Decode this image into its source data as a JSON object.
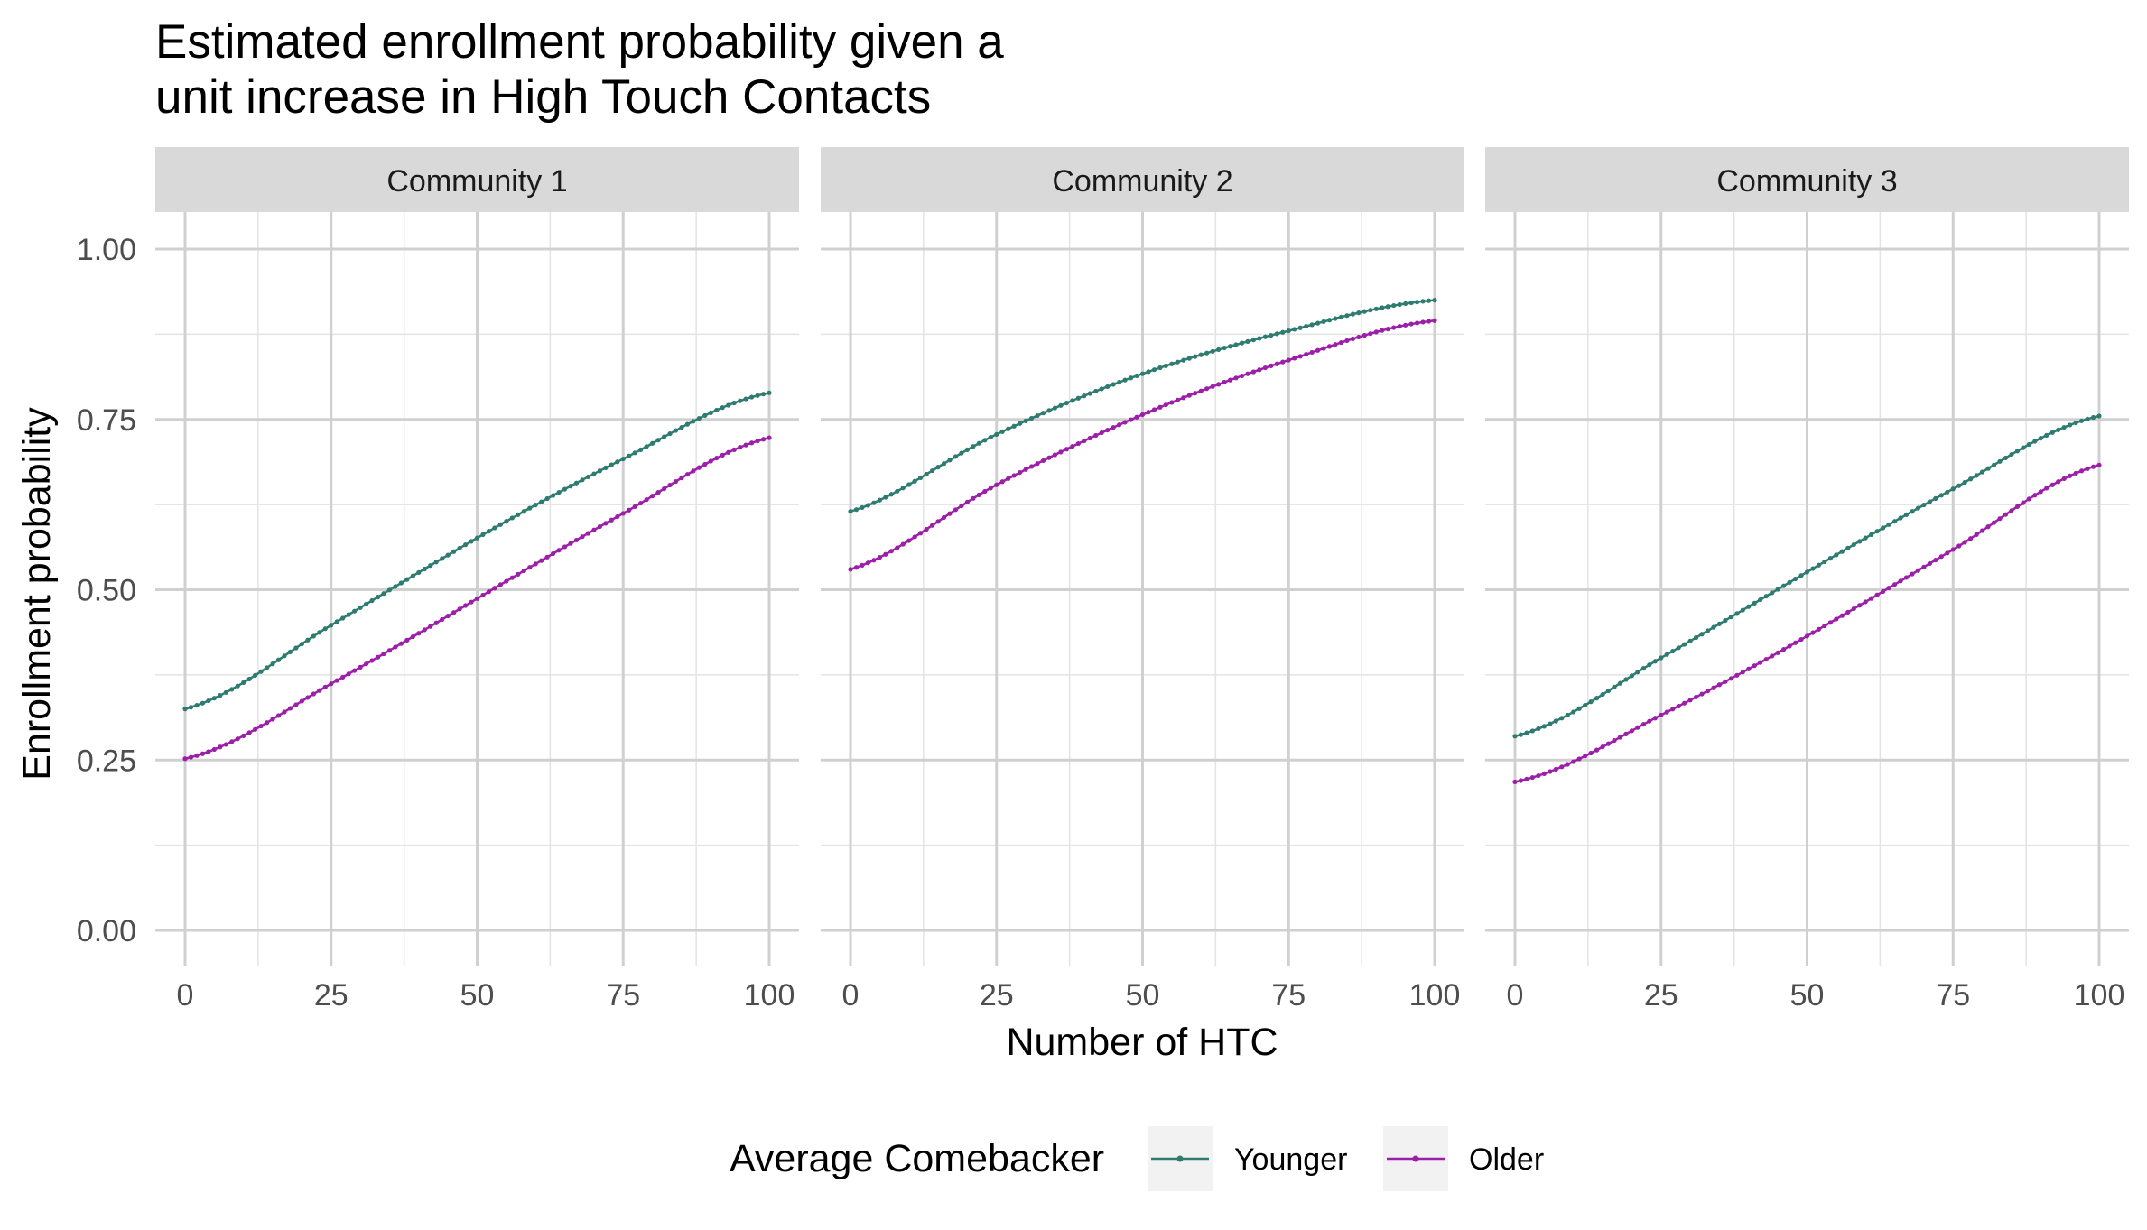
{
  "chart_data": {
    "type": "line",
    "title_lines": [
      "Estimated enrollment probability given a",
      "unit increase in High Touch Contacts"
    ],
    "xlabel": "Number of HTC",
    "ylabel": "Enrollment probability",
    "xlim": [
      0,
      100
    ],
    "ylim": [
      0,
      1
    ],
    "x_ticks": [
      0,
      25,
      50,
      75,
      100
    ],
    "x_tick_labels": [
      "0",
      "25",
      "50",
      "75",
      "100"
    ],
    "y_ticks": [
      0,
      0.25,
      0.5,
      0.75,
      1
    ],
    "y_tick_labels": [
      "0.00",
      "0.25",
      "0.50",
      "0.75",
      "1.00"
    ],
    "grid": true,
    "legend": {
      "title": "Average Comebacker",
      "position": "bottom",
      "entries": [
        {
          "label": "Younger",
          "color": "#2e7b70"
        },
        {
          "label": "Older",
          "color": "#9c1fa8"
        }
      ]
    },
    "facets": [
      {
        "label": "Community 1",
        "series": [
          {
            "name": "Younger",
            "color": "#2e7b70",
            "x": [
              0,
              25,
              50,
              75,
              100
            ],
            "y": [
              0.325,
              0.448,
              0.576,
              0.692,
              0.789
            ]
          },
          {
            "name": "Older",
            "color": "#9c1fa8",
            "x": [
              0,
              25,
              50,
              75,
              100
            ],
            "y": [
              0.252,
              0.362,
              0.487,
              0.612,
              0.723
            ]
          }
        ]
      },
      {
        "label": "Community 2",
        "series": [
          {
            "name": "Younger",
            "color": "#2e7b70",
            "x": [
              0,
              25,
              50,
              75,
              100
            ],
            "y": [
              0.615,
              0.728,
              0.817,
              0.88,
              0.925
            ]
          },
          {
            "name": "Older",
            "color": "#9c1fa8",
            "x": [
              0,
              25,
              50,
              75,
              100
            ],
            "y": [
              0.53,
              0.654,
              0.757,
              0.837,
              0.895
            ]
          }
        ]
      },
      {
        "label": "Community 3",
        "series": [
          {
            "name": "Younger",
            "color": "#2e7b70",
            "x": [
              0,
              25,
              50,
              75,
              100
            ],
            "y": [
              0.285,
              0.4,
              0.526,
              0.648,
              0.755
            ]
          },
          {
            "name": "Older",
            "color": "#9c1fa8",
            "x": [
              0,
              25,
              50,
              75,
              100
            ],
            "y": [
              0.218,
              0.316,
              0.432,
              0.559,
              0.683
            ]
          }
        ]
      }
    ]
  }
}
